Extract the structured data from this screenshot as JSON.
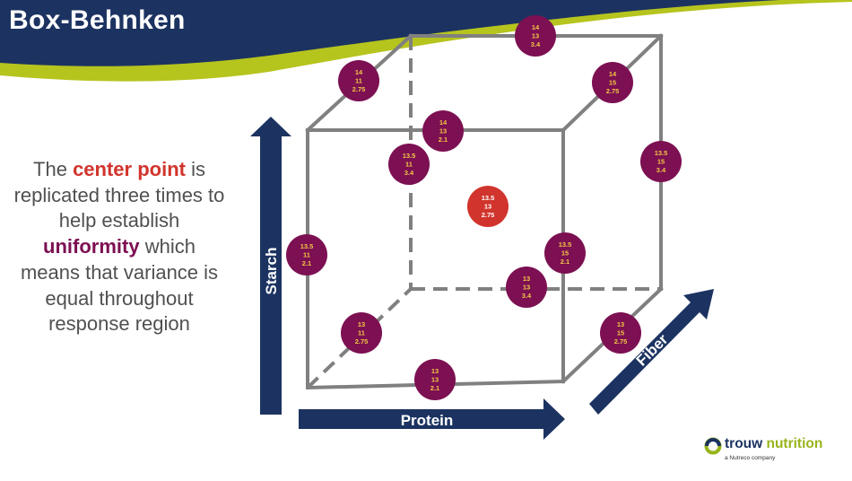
{
  "title": "Box-Behnken",
  "description": {
    "t1": "The ",
    "h1": "center point",
    "t2": " is replicated three times to help establish ",
    "h2": "uniformity",
    "t3": " which means that variance is equal throughout response region"
  },
  "axes": {
    "y": "Starch",
    "x": "Protein",
    "z": "Fiber"
  },
  "points": [
    {
      "id": "p-14-13-3.4",
      "lines": [
        "14",
        "13",
        "3.4"
      ],
      "center": false
    },
    {
      "id": "p-14-11-2.75",
      "lines": [
        "14",
        "11",
        "2.75"
      ],
      "center": false
    },
    {
      "id": "p-14-15-2.75",
      "lines": [
        "14",
        "15",
        "2.75"
      ],
      "center": false
    },
    {
      "id": "p-14-13-2.1",
      "lines": [
        "14",
        "13",
        "2.1"
      ],
      "center": false
    },
    {
      "id": "p-13.5-11-3.4",
      "lines": [
        "13.5",
        "11",
        "3.4"
      ],
      "center": false
    },
    {
      "id": "p-13.5-15-3.4",
      "lines": [
        "13.5",
        "15",
        "3.4"
      ],
      "center": false
    },
    {
      "id": "p-13.5-13-2.75",
      "lines": [
        "13.5",
        "13",
        "2.75"
      ],
      "center": true
    },
    {
      "id": "p-13.5-11-2.1",
      "lines": [
        "13.5",
        "11",
        "2.1"
      ],
      "center": false
    },
    {
      "id": "p-13.5-15-2.1",
      "lines": [
        "13.5",
        "15",
        "2.1"
      ],
      "center": false
    },
    {
      "id": "p-13-13-3.4",
      "lines": [
        "13",
        "13",
        "3.4"
      ],
      "center": false
    },
    {
      "id": "p-13-11-2.75",
      "lines": [
        "13",
        "11",
        "2.75"
      ],
      "center": false
    },
    {
      "id": "p-13-15-2.75",
      "lines": [
        "13",
        "15",
        "2.75"
      ],
      "center": false
    },
    {
      "id": "p-13-13-2.1",
      "lines": [
        "13",
        "13",
        "2.1"
      ],
      "center": false
    }
  ],
  "colors": {
    "navy": "#1c3361",
    "lime": "#b6c41e",
    "point": "#7c1052",
    "center_point": "#d1342c",
    "cube_edge": "#808080"
  },
  "logo": {
    "name_a": "trouw ",
    "name_b": "nutrition",
    "sub": "a Nutreco company",
    "icon": "trouw-logo-icon"
  }
}
